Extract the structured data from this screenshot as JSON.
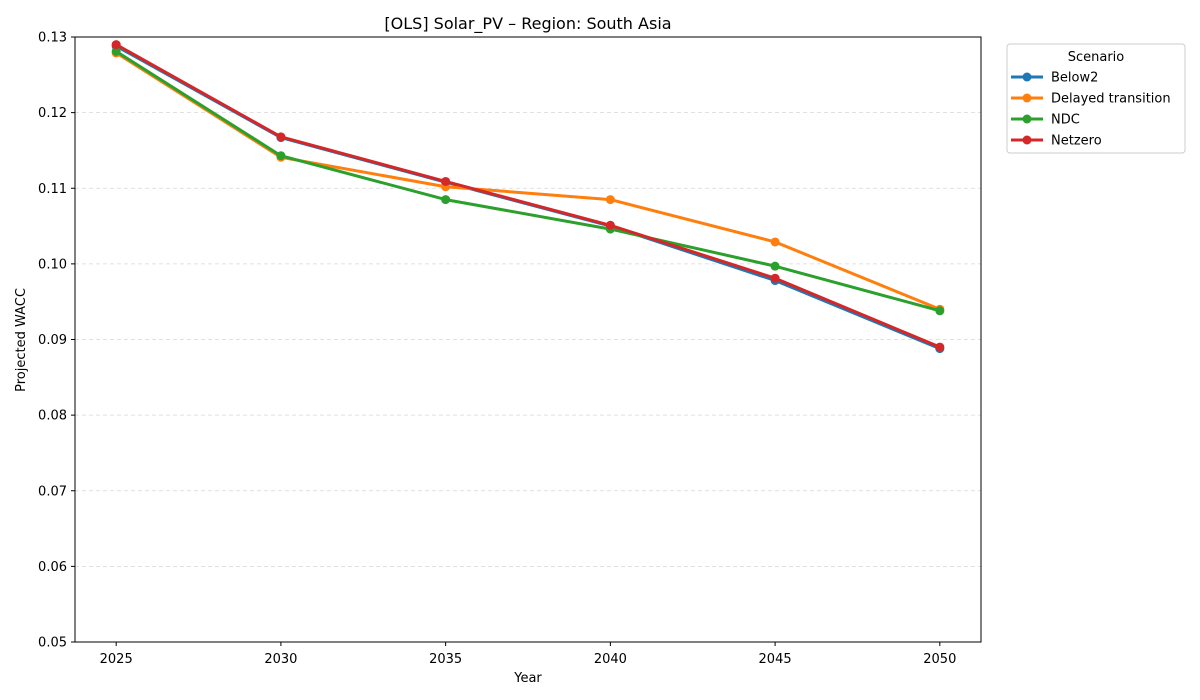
{
  "chart_data": {
    "type": "line",
    "title": "[OLS] Solar_PV – Region: South Asia",
    "xlabel": "Year",
    "ylabel": "Projected WACC",
    "x": [
      2025,
      2030,
      2035,
      2040,
      2045,
      2050
    ],
    "xlim": [
      2023.75,
      2051.25
    ],
    "ylim": [
      0.05,
      0.13
    ],
    "yticks": [
      0.05,
      0.06,
      0.07,
      0.08,
      0.09,
      0.1,
      0.11,
      0.12,
      0.13
    ],
    "ytick_labels": [
      "0.05",
      "0.06",
      "0.07",
      "0.08",
      "0.09",
      "0.10",
      "0.11",
      "0.12",
      "0.13"
    ],
    "xtick_labels": [
      "2025",
      "2030",
      "2035",
      "2040",
      "2045",
      "2050"
    ],
    "grid": "y-dashed",
    "legend": {
      "title": "Scenario",
      "placement": "outside-top-right"
    },
    "series": [
      {
        "name": "Below2",
        "color": "#1f77b4",
        "values": [
          0.1288,
          0.1167,
          0.1108,
          0.105,
          0.0978,
          0.0888
        ]
      },
      {
        "name": "Delayed transition",
        "color": "#ff7f0e",
        "values": [
          0.1279,
          0.1141,
          0.1102,
          0.1085,
          0.1029,
          0.094
        ]
      },
      {
        "name": "NDC",
        "color": "#2ca02c",
        "values": [
          0.1281,
          0.1143,
          0.1085,
          0.1046,
          0.0997,
          0.0938
        ]
      },
      {
        "name": "Netzero",
        "color": "#d62728",
        "values": [
          0.129,
          0.1168,
          0.1109,
          0.1051,
          0.0981,
          0.089
        ]
      }
    ]
  }
}
